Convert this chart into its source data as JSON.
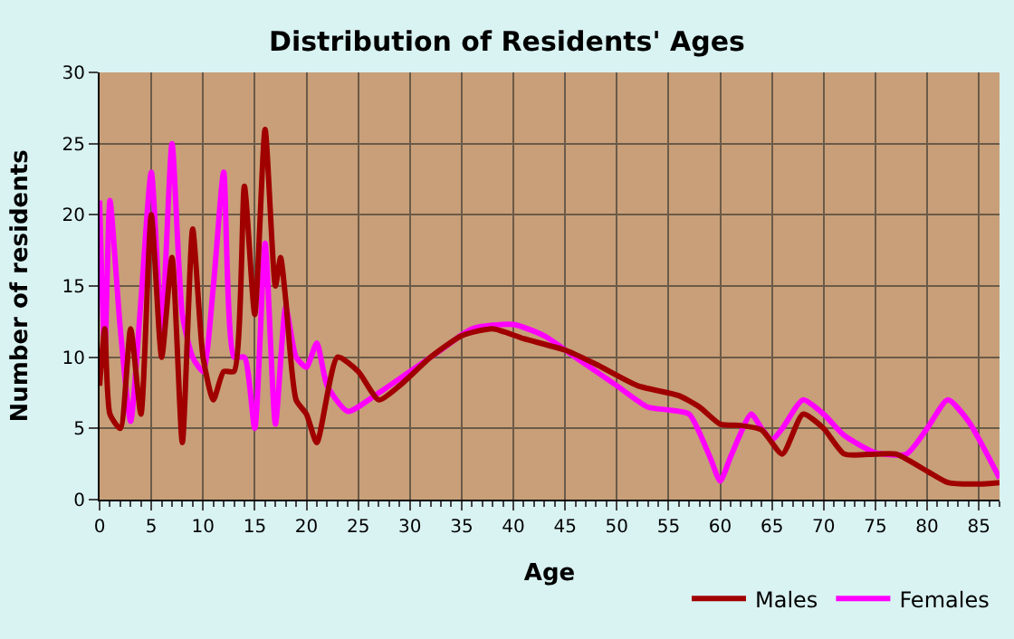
{
  "chart_data": {
    "type": "line",
    "title": "Distribution of Residents' Ages",
    "xlabel": "Age",
    "ylabel": "Number of residents",
    "xlim": [
      0,
      87
    ],
    "xticks": [
      0,
      5,
      10,
      15,
      20,
      25,
      30,
      35,
      40,
      45,
      50,
      55,
      60,
      65,
      70,
      75,
      80,
      85
    ],
    "ylim": [
      0,
      30
    ],
    "yticks": [
      0,
      5,
      10,
      15,
      20,
      25,
      30
    ],
    "grid": true,
    "legend": "bottom right",
    "marker": "none",
    "line_style": "solid",
    "series": [
      {
        "name": "Males",
        "color": "#a00000",
        "x": [
          0,
          0.5,
          1,
          2,
          3,
          4,
          5,
          6,
          7,
          8,
          9,
          10,
          11,
          12,
          13,
          14,
          15,
          16,
          17,
          17.5,
          18,
          19,
          20,
          21,
          23,
          25,
          27,
          29,
          32,
          35,
          38,
          41,
          45,
          48,
          52,
          56,
          58,
          60,
          62,
          64,
          66,
          68,
          70,
          72,
          75,
          77,
          80,
          82,
          85,
          87
        ],
        "values": [
          8,
          12,
          6,
          5,
          12,
          6,
          20,
          10,
          17,
          4,
          19,
          10,
          7,
          9,
          9,
          22,
          13,
          26,
          15,
          17,
          14,
          7,
          6,
          4,
          10,
          9,
          7,
          8,
          10,
          11.5,
          12,
          11.3,
          10.5,
          9.5,
          8,
          7.3,
          6.5,
          5.3,
          5.2,
          4.9,
          3.2,
          6,
          5,
          3.2,
          3.2,
          3.2,
          2,
          1.2,
          1.1,
          1.2
        ]
      },
      {
        "name": "Females",
        "color": "#ff00ff",
        "x": [
          0,
          0.5,
          1,
          2,
          3,
          4,
          5,
          6,
          7,
          8,
          9,
          10,
          11,
          12,
          13,
          14,
          15,
          16,
          17,
          18,
          19,
          20,
          21,
          22,
          24,
          27,
          30,
          33,
          36,
          40,
          43,
          46,
          50,
          53,
          55,
          57,
          59,
          60,
          61,
          63,
          64,
          65,
          66,
          68,
          70,
          72,
          75,
          78,
          80,
          82,
          84,
          87
        ],
        "values": [
          21,
          10,
          21,
          12,
          5.5,
          14,
          23,
          12,
          25,
          13,
          10,
          9,
          15,
          23,
          10,
          10,
          5,
          18,
          5.3,
          13.5,
          10,
          9.3,
          11,
          8,
          6.2,
          7.5,
          9,
          10.5,
          12,
          12.3,
          11.5,
          10,
          8,
          6.5,
          6.3,
          6,
          3,
          1.3,
          3,
          6,
          5,
          4.2,
          5,
          7,
          6,
          4.5,
          3.3,
          3.2,
          5,
          7,
          5.5,
          1.5
        ]
      }
    ]
  }
}
